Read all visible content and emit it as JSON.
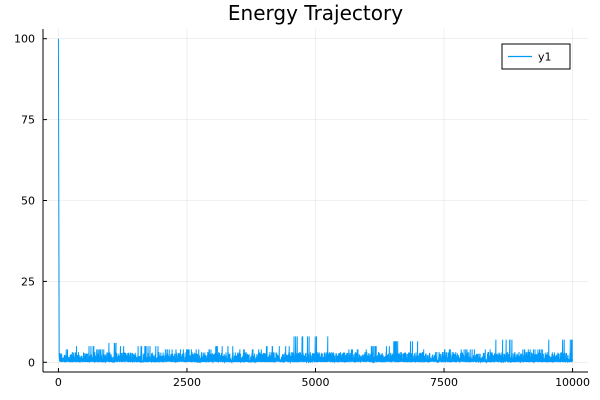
{
  "chart_data": {
    "type": "line",
    "title": "Energy Trajectory",
    "xlabel": "",
    "ylabel": "",
    "xlim": [
      -300,
      10300
    ],
    "ylim": [
      -3,
      103
    ],
    "xticks": [
      0,
      2500,
      5000,
      7500,
      10000
    ],
    "yticks": [
      0,
      25,
      50,
      75,
      100
    ],
    "grid": true,
    "legend": "top-right",
    "series": [
      {
        "name": "y1",
        "color": "#009AFA",
        "x": [
          0,
          10,
          20,
          50,
          100,
          200,
          300,
          500,
          700,
          900,
          950,
          1200,
          1500,
          1600,
          1700,
          2000,
          2500,
          3000,
          3300,
          3500,
          4000,
          4500,
          5000,
          5500,
          6000,
          6500,
          6900,
          7000,
          7500,
          8000,
          8500,
          8650,
          9000,
          9500,
          9950,
          10000
        ],
        "values": [
          100,
          25,
          4,
          3,
          4,
          3,
          4,
          5,
          4,
          3,
          6,
          4,
          5,
          5,
          5,
          4,
          4,
          4,
          5,
          4,
          4,
          5,
          8,
          4,
          4,
          5,
          6.5,
          4,
          4,
          4,
          4,
          7,
          4,
          4,
          7,
          3
        ]
      }
    ]
  }
}
